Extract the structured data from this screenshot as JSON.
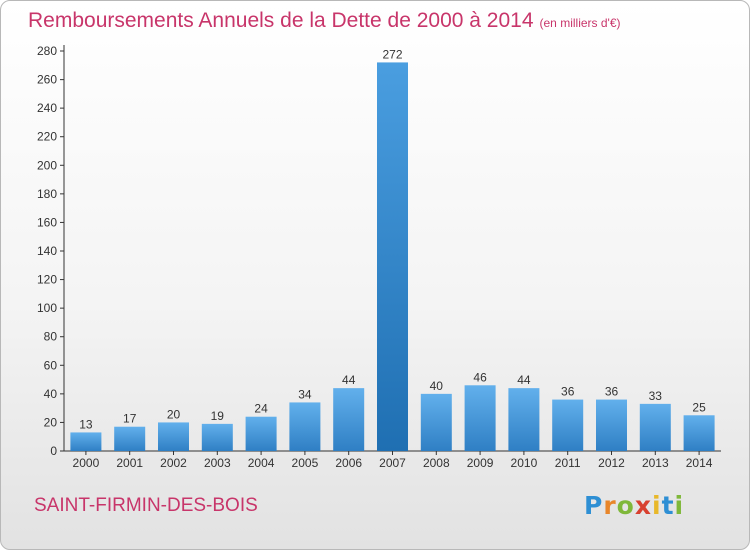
{
  "header": {
    "title": "Remboursements Annuels de la Dette de 2000 à 2014",
    "unit": "(en milliers d'€)"
  },
  "footer": {
    "commune": "SAINT-FIRMIN-DES-BOIS",
    "logo": "Proxiti"
  },
  "colors": {
    "title": "#c8356a",
    "bar_light": "#62b0ec",
    "bar_dark": "#2f7fc4",
    "highlight_bar_dark": "#1f6fb2"
  },
  "chart_data": {
    "type": "bar",
    "title": "Remboursements Annuels de la Dette de 2000 à 2014",
    "subtitle": "(en milliers d'€)",
    "xlabel": "",
    "ylabel": "",
    "categories": [
      "2000",
      "2001",
      "2002",
      "2003",
      "2004",
      "2005",
      "2006",
      "2007",
      "2008",
      "2009",
      "2010",
      "2011",
      "2012",
      "2013",
      "2014"
    ],
    "values": [
      13,
      17,
      20,
      19,
      24,
      34,
      44,
      272,
      40,
      46,
      44,
      36,
      36,
      33,
      25
    ],
    "ylim": [
      0,
      280
    ],
    "yticks": [
      0,
      20,
      40,
      60,
      80,
      100,
      120,
      140,
      160,
      180,
      200,
      220,
      240,
      260,
      280
    ],
    "grid": false,
    "legend": "none",
    "data_labels": true
  }
}
